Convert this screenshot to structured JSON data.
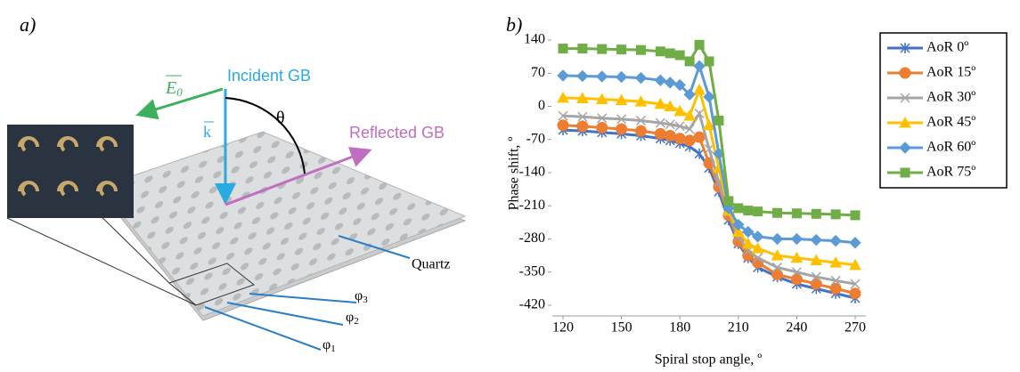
{
  "panel_a": {
    "label": "a)",
    "incident": "Incident GB",
    "field": {
      "symbol": "E",
      "sub": "0"
    },
    "wavevector": "k",
    "angle": "θ",
    "reflected": "Reflected GB",
    "substrate": "Quartz",
    "phases": [
      {
        "symbol": "φ",
        "sub": "3"
      },
      {
        "symbol": "φ",
        "sub": "2"
      },
      {
        "symbol": "φ",
        "sub": "1"
      }
    ]
  },
  "chart_data": {
    "type": "line",
    "panel_label": "b)",
    "x_label": "Spiral stop angle, º",
    "y_label": "Phase shift, º",
    "x": [
      120,
      130,
      140,
      150,
      160,
      170,
      175,
      180,
      185,
      190,
      195,
      200,
      205,
      210,
      215,
      220,
      230,
      240,
      250,
      260,
      270
    ],
    "xlim": [
      120,
      270
    ],
    "xticks": [
      120,
      150,
      180,
      210,
      240,
      270
    ],
    "ylim": [
      -420,
      140
    ],
    "yticks": [
      -420,
      -350,
      -280,
      -210,
      -140,
      -70,
      0,
      70,
      140
    ],
    "grid": false,
    "legend": "upper right",
    "series": [
      {
        "name": "AoR 0º",
        "color": "#4472c4",
        "marker": "asterisk",
        "values": [
          -50,
          -52,
          -55,
          -58,
          -62,
          -68,
          -72,
          -78,
          -85,
          -100,
          -130,
          -180,
          -240,
          -290,
          -320,
          -340,
          -360,
          -375,
          -385,
          -395,
          -405
        ]
      },
      {
        "name": "AoR 15º",
        "color": "#ed7d31",
        "marker": "circle",
        "values": [
          -40,
          -42,
          -45,
          -48,
          -52,
          -58,
          -62,
          -68,
          -72,
          -65,
          -120,
          -170,
          -230,
          -285,
          -315,
          -330,
          -355,
          -365,
          -375,
          -385,
          -395
        ]
      },
      {
        "name": "AoR 30º",
        "color": "#a5a5a5",
        "marker": "cross",
        "values": [
          -20,
          -22,
          -25,
          -27,
          -30,
          -35,
          -38,
          -42,
          -48,
          -15,
          -90,
          -160,
          -225,
          -275,
          -305,
          -320,
          -340,
          -350,
          -360,
          -368,
          -375
        ]
      },
      {
        "name": "AoR 45º",
        "color": "#ffc000",
        "marker": "triangle",
        "values": [
          18,
          17,
          15,
          13,
          10,
          5,
          0,
          -10,
          -20,
          35,
          -40,
          -130,
          -220,
          -265,
          -290,
          -300,
          -315,
          -320,
          -325,
          -330,
          -335
        ]
      },
      {
        "name": "AoR 60º",
        "color": "#5b9bd5",
        "marker": "diamond",
        "values": [
          65,
          64,
          63,
          62,
          60,
          55,
          50,
          45,
          25,
          85,
          20,
          -100,
          -215,
          -250,
          -265,
          -275,
          -280,
          -280,
          -282,
          -284,
          -288
        ]
      },
      {
        "name": "AoR 75º",
        "color": "#70ad47",
        "marker": "square",
        "values": [
          122,
          122,
          121,
          120,
          119,
          116,
          112,
          108,
          95,
          130,
          95,
          -30,
          -200,
          -215,
          -220,
          -222,
          -225,
          -226,
          -227,
          -228,
          -230
        ]
      }
    ]
  }
}
